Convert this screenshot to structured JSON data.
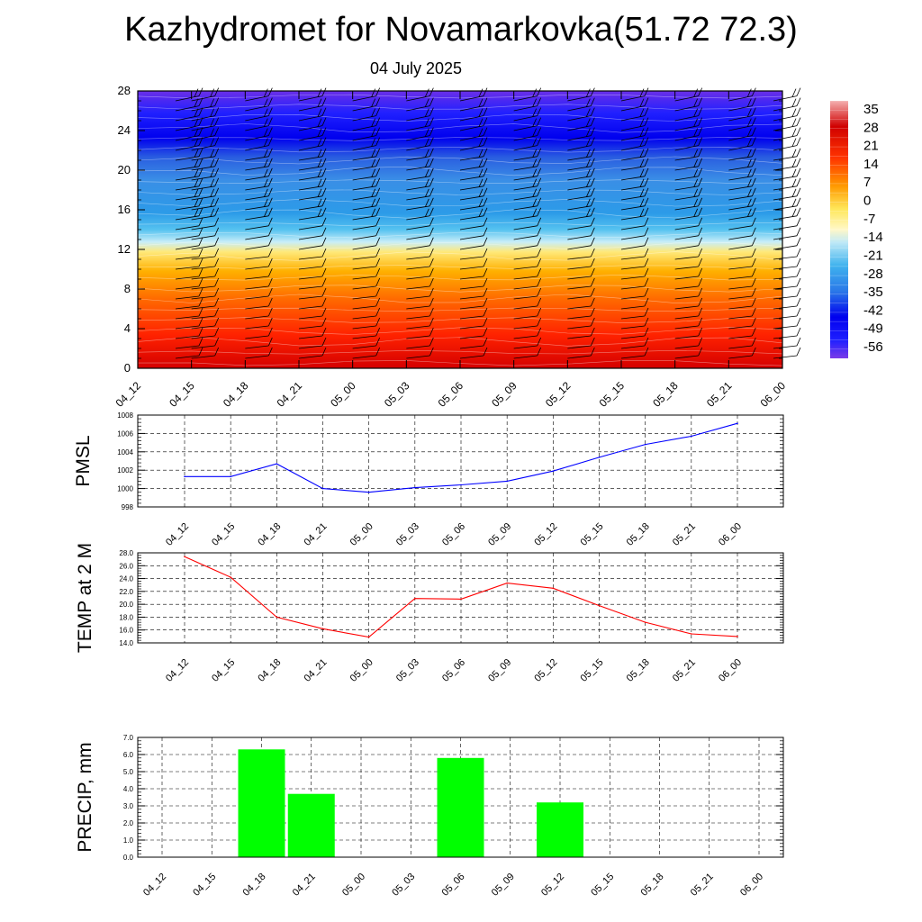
{
  "header": {
    "title": "Kazhydromet for Novamarkovka(51.72 72.3)",
    "subtitle": "04 July 2025"
  },
  "colors": {
    "pmsl_line": "#0000ff",
    "temp_line": "#ff0000",
    "precip_bar": "#00ff00"
  },
  "chart_data": [
    {
      "type": "heatmap",
      "title": "",
      "ylabel": "",
      "ylim": [
        0,
        28
      ],
      "y_ticks": [
        "0",
        "4",
        "8",
        "12",
        "16",
        "20",
        "24",
        "28"
      ],
      "x": [
        "04_12",
        "04_15",
        "04_18",
        "04_21",
        "05_00",
        "05_03",
        "05_06",
        "05_09",
        "05_12",
        "05_15",
        "05_18",
        "05_21",
        "06_00"
      ],
      "colorbar_labels": [
        "35",
        "28",
        "21",
        "14",
        "7",
        "0",
        "-7",
        "-14",
        "-21",
        "-28",
        "-35",
        "-42",
        "-49",
        "-56"
      ],
      "overlay": "wind barbs"
    },
    {
      "type": "line",
      "ylabel": "PMSL",
      "ylim": [
        998,
        1008
      ],
      "y_ticks": [
        "998",
        "1000",
        "1002",
        "1004",
        "1006",
        "1008"
      ],
      "x": [
        "04_12",
        "04_15",
        "04_18",
        "04_21",
        "05_00",
        "05_03",
        "05_06",
        "05_09",
        "05_12",
        "05_15",
        "05_18",
        "05_21",
        "06_00"
      ],
      "series": [
        {
          "values": [
            1001.3,
            1001.3,
            1002.7,
            1000.0,
            999.6,
            1000.1,
            1000.4,
            1000.8,
            1001.9,
            1003.4,
            1004.8,
            1005.7,
            1007.1
          ]
        }
      ],
      "grid": true
    },
    {
      "type": "line",
      "ylabel": "TEMP at 2 M",
      "ylim": [
        14,
        28
      ],
      "y_ticks": [
        "14.0",
        "16.0",
        "18.0",
        "20.0",
        "22.0",
        "24.0",
        "26.0",
        "28.0"
      ],
      "x": [
        "04_12",
        "04_15",
        "04_18",
        "04_21",
        "05_00",
        "05_03",
        "05_06",
        "05_09",
        "05_12",
        "05_15",
        "05_18",
        "05_21",
        "06_00"
      ],
      "series": [
        {
          "values": [
            27.4,
            24.2,
            18.0,
            16.2,
            14.9,
            20.9,
            20.8,
            23.3,
            22.5,
            19.8,
            17.2,
            15.4,
            15.0
          ]
        }
      ],
      "grid": true
    },
    {
      "type": "bar",
      "ylabel": "PRECIP, mm",
      "ylim": [
        0,
        7
      ],
      "y_ticks": [
        "0.0",
        "1.0",
        "2.0",
        "3.0",
        "4.0",
        "5.0",
        "6.0",
        "7.0"
      ],
      "categories": [
        "04_12",
        "04_15",
        "04_18",
        "04_21",
        "05_00",
        "05_03",
        "05_06",
        "05_09",
        "05_12",
        "05_15",
        "05_18",
        "05_21",
        "06_00"
      ],
      "values": [
        0,
        0,
        6.3,
        3.7,
        0,
        0,
        5.8,
        0,
        3.2,
        0,
        0,
        0,
        0
      ],
      "grid": true
    }
  ]
}
